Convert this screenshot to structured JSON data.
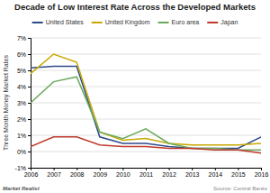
{
  "chart_data": {
    "type": "line",
    "title": "Decade of Low Interest Rate Across the Developed Markets",
    "y_label": "Three Month Money Market Rates",
    "x": [
      2006,
      2007,
      2008,
      2009,
      2010,
      2011,
      2012,
      2013,
      2014,
      2015,
      2016
    ],
    "xlim": [
      2006,
      2016
    ],
    "xticks": [
      2006,
      2007,
      2008,
      2009,
      2010,
      2011,
      2012,
      2013,
      2014,
      2015,
      2016
    ],
    "ylim": [
      -0.01,
      0.07
    ],
    "yticks": [
      {
        "value": -0.01,
        "label": "-1%"
      },
      {
        "value": 0.0,
        "label": "0%"
      },
      {
        "value": 0.01,
        "label": "1%"
      },
      {
        "value": 0.02,
        "label": "2%"
      },
      {
        "value": 0.03,
        "label": "3%"
      },
      {
        "value": 0.04,
        "label": "4%"
      },
      {
        "value": 0.05,
        "label": "5%"
      },
      {
        "value": 0.06,
        "label": "6%"
      },
      {
        "value": 0.07,
        "label": "7%"
      }
    ],
    "series": [
      {
        "name": "United States",
        "color": "#2c4a8c",
        "values": [
          0.0515,
          0.0525,
          0.0525,
          0.009,
          0.005,
          0.005,
          0.003,
          0.002,
          0.002,
          0.002,
          0.009
        ]
      },
      {
        "name": "United Kingdom",
        "color": "#c8a800",
        "values": [
          0.048,
          0.06,
          0.055,
          0.012,
          0.007,
          0.008,
          0.005,
          0.004,
          0.004,
          0.004,
          0.005
        ]
      },
      {
        "name": "Euro area",
        "color": "#6aaa5c",
        "values": [
          0.03,
          0.043,
          0.046,
          0.012,
          0.008,
          0.014,
          0.005,
          0.002,
          0.002,
          0.001,
          0.001
        ]
      },
      {
        "name": "Japan",
        "color": "#c0392b",
        "values": [
          0.003,
          0.009,
          0.009,
          0.004,
          0.003,
          0.003,
          0.002,
          0.002,
          0.001,
          0.001,
          -0.001
        ]
      }
    ],
    "grid": true,
    "legend": "top",
    "annotations": [
      "Market Realist",
      "Source: Central Banks"
    ]
  }
}
